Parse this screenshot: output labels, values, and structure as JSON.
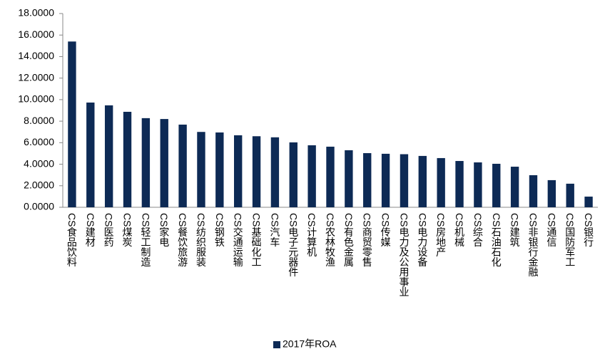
{
  "chart_data": {
    "type": "bar",
    "categories": [
      "CS食品饮料",
      "CS建材",
      "CS医药",
      "CS煤炭",
      "CS轻工制造",
      "CS家电",
      "CS餐饮旅游",
      "CS纺织服装",
      "CS钢铁",
      "CS交通运输",
      "CS基础化工",
      "CS汽车",
      "CS电子元器件",
      "CS计算机",
      "CS农林牧渔",
      "CS有色金属",
      "CS商贸零售",
      "CS传媒",
      "CS电力及公用事业",
      "CS电力设备",
      "CS房地产",
      "CS机械",
      "CS综合",
      "CS石油石化",
      "CS建筑",
      "CS非银行金融",
      "CS通信",
      "CS国防军工",
      "CS银行"
    ],
    "series": [
      {
        "name": "2017年ROA",
        "color": "#0d2a55",
        "values": [
          15.4,
          9.73,
          9.47,
          8.87,
          8.28,
          8.2,
          7.68,
          7.0,
          6.95,
          6.69,
          6.6,
          6.5,
          6.03,
          5.76,
          5.63,
          5.3,
          5.03,
          4.97,
          4.93,
          4.77,
          4.57,
          4.3,
          4.17,
          4.04,
          3.77,
          2.98,
          2.52,
          2.19,
          0.99
        ]
      }
    ],
    "ylim": [
      0,
      18
    ],
    "yticks": [
      {
        "value": 0,
        "label": "0.0000"
      },
      {
        "value": 2,
        "label": "2.0000"
      },
      {
        "value": 4,
        "label": "4.0000"
      },
      {
        "value": 6,
        "label": "6.0000"
      },
      {
        "value": 8,
        "label": "8.0000"
      },
      {
        "value": 10,
        "label": "10.0000"
      },
      {
        "value": 12,
        "label": "12.0000"
      },
      {
        "value": 14,
        "label": "14.0000"
      },
      {
        "value": 16,
        "label": "16.0000"
      },
      {
        "value": 18,
        "label": "18.0000"
      }
    ],
    "grid": false,
    "legend": "bottom"
  }
}
